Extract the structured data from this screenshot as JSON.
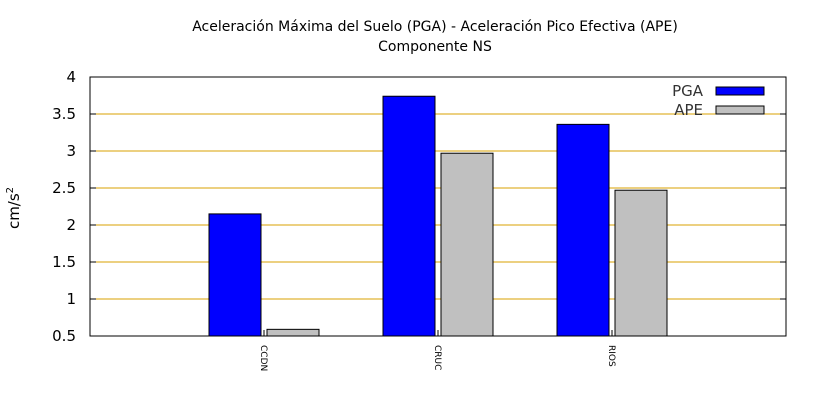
{
  "chart_data": {
    "type": "bar",
    "title": "Aceleración Máxima del Suelo (PGA) -  Aceleración Pico Efectiva (APE)",
    "subtitle": "Componente NS",
    "ylabel": "cm/s",
    "ylabel_superscript": "2",
    "xlabel": "",
    "ylim": [
      0.5,
      4
    ],
    "yticks": [
      "0.5",
      "1",
      "1.5",
      "2",
      "2.5",
      "3",
      "3.5",
      "4"
    ],
    "categories": [
      "CCDN",
      "CRUC",
      "RIOS"
    ],
    "series": [
      {
        "name": "PGA",
        "values": [
          2.15,
          3.74,
          3.36
        ],
        "color": "#0000ff"
      },
      {
        "name": "APE",
        "values": [
          0.59,
          2.97,
          2.47
        ],
        "color": "#c0c0c0"
      }
    ],
    "grid": true,
    "grid_color": "#d9a000",
    "legend_position": "top-right"
  }
}
